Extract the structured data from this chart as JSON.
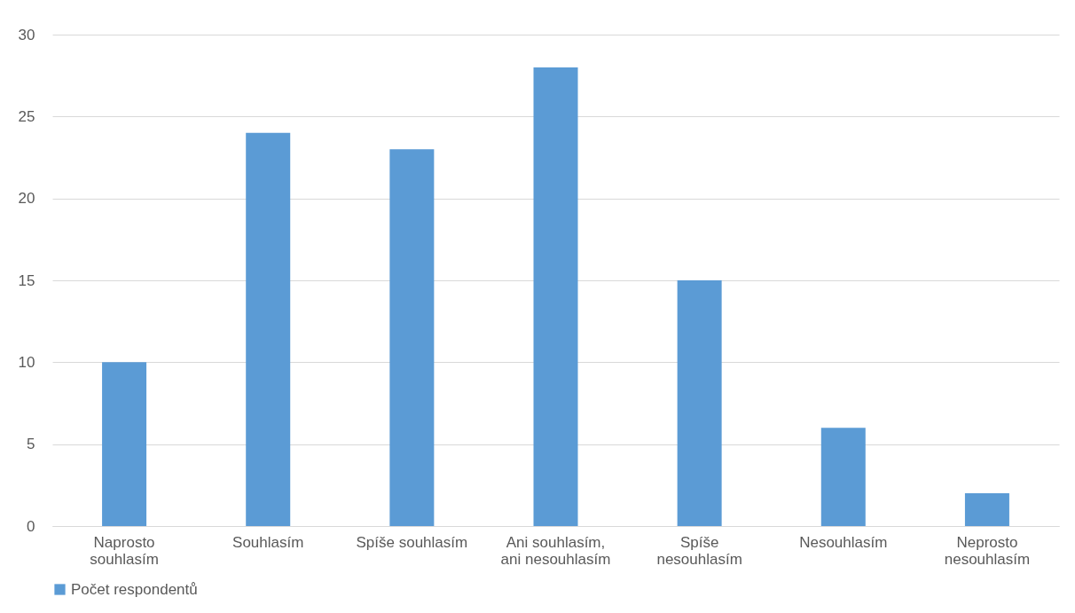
{
  "chart_data": {
    "type": "bar",
    "categories": [
      "Naprosto souhlasím",
      "Souhlasím",
      "Spíše souhlasím",
      "Ani souhlasím, ani nesouhlasím",
      "Spíše nesouhlasím",
      "Nesouhlasím",
      "Neprosto nesouhlasím"
    ],
    "series": [
      {
        "name": "Počet respondentů",
        "color": "#5b9bd5",
        "values": [
          10,
          24,
          23,
          28,
          15,
          6,
          2
        ]
      }
    ],
    "ylim": [
      0,
      30
    ],
    "yticks": [
      0,
      5,
      10,
      15,
      20,
      25,
      30
    ],
    "grid": "y",
    "legend": "bottom"
  }
}
